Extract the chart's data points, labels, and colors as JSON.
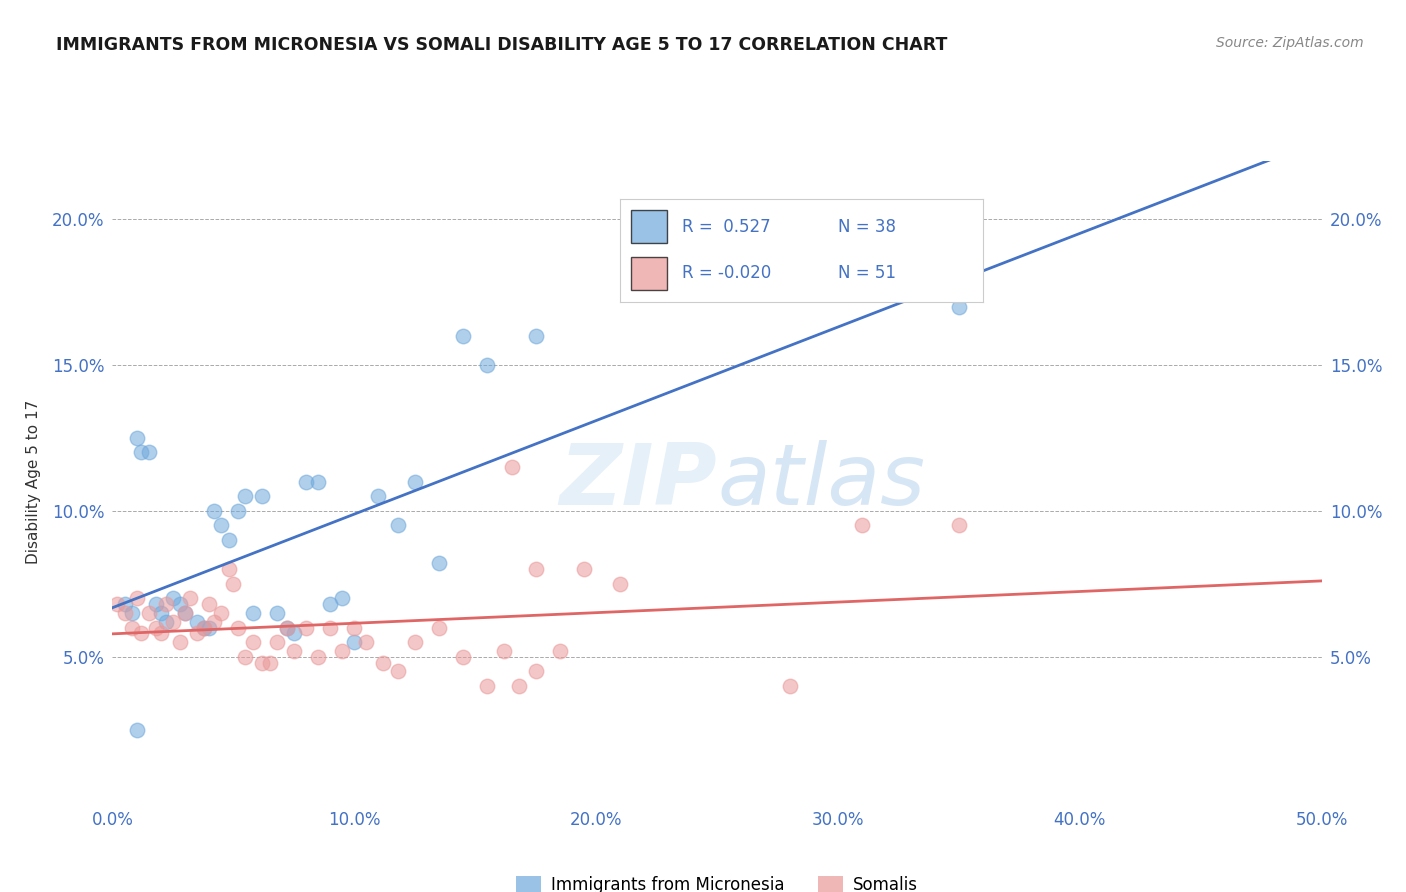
{
  "title": "IMMIGRANTS FROM MICRONESIA VS SOMALI DISABILITY AGE 5 TO 17 CORRELATION CHART",
  "source": "Source: ZipAtlas.com",
  "ylabel": "Disability Age 5 to 17",
  "xlim": [
    0,
    0.5
  ],
  "ylim": [
    0,
    0.22
  ],
  "xticks": [
    0.0,
    0.1,
    0.2,
    0.3,
    0.4,
    0.5
  ],
  "yticks": [
    0.05,
    0.1,
    0.15,
    0.2
  ],
  "ytick_labels": [
    "5.0%",
    "10.0%",
    "15.0%",
    "20.0%"
  ],
  "xtick_labels": [
    "0.0%",
    "10.0%",
    "20.0%",
    "30.0%",
    "40.0%",
    "50.0%"
  ],
  "blue_R": 0.527,
  "blue_N": 38,
  "pink_R": -0.02,
  "pink_N": 51,
  "blue_color": "#6fa8dc",
  "pink_color": "#ea9999",
  "blue_line_color": "#4472c4",
  "pink_line_color": "#e06666",
  "legend_label_blue": "Immigrants from Micronesia",
  "legend_label_pink": "Somalis",
  "blue_scatter_x": [
    0.005,
    0.008,
    0.01,
    0.012,
    0.015,
    0.018,
    0.02,
    0.022,
    0.025,
    0.028,
    0.03,
    0.035,
    0.038,
    0.04,
    0.042,
    0.045,
    0.048,
    0.052,
    0.055,
    0.058,
    0.062,
    0.068,
    0.072,
    0.075,
    0.08,
    0.085,
    0.09,
    0.095,
    0.1,
    0.11,
    0.118,
    0.125,
    0.135,
    0.145,
    0.155,
    0.175,
    0.35,
    0.01
  ],
  "blue_scatter_y": [
    0.068,
    0.065,
    0.125,
    0.12,
    0.12,
    0.068,
    0.065,
    0.062,
    0.07,
    0.068,
    0.065,
    0.062,
    0.06,
    0.06,
    0.1,
    0.095,
    0.09,
    0.1,
    0.105,
    0.065,
    0.105,
    0.065,
    0.06,
    0.058,
    0.11,
    0.11,
    0.068,
    0.07,
    0.055,
    0.105,
    0.095,
    0.11,
    0.082,
    0.16,
    0.15,
    0.16,
    0.17,
    0.025
  ],
  "pink_scatter_x": [
    0.002,
    0.005,
    0.008,
    0.01,
    0.012,
    0.015,
    0.018,
    0.02,
    0.022,
    0.025,
    0.028,
    0.03,
    0.032,
    0.035,
    0.038,
    0.04,
    0.042,
    0.045,
    0.048,
    0.05,
    0.052,
    0.055,
    0.058,
    0.062,
    0.065,
    0.068,
    0.072,
    0.075,
    0.08,
    0.085,
    0.09,
    0.095,
    0.1,
    0.105,
    0.112,
    0.118,
    0.125,
    0.135,
    0.145,
    0.155,
    0.162,
    0.168,
    0.175,
    0.185,
    0.195,
    0.21,
    0.175,
    0.28,
    0.31,
    0.35,
    0.165
  ],
  "pink_scatter_y": [
    0.068,
    0.065,
    0.06,
    0.07,
    0.058,
    0.065,
    0.06,
    0.058,
    0.068,
    0.062,
    0.055,
    0.065,
    0.07,
    0.058,
    0.06,
    0.068,
    0.062,
    0.065,
    0.08,
    0.075,
    0.06,
    0.05,
    0.055,
    0.048,
    0.048,
    0.055,
    0.06,
    0.052,
    0.06,
    0.05,
    0.06,
    0.052,
    0.06,
    0.055,
    0.048,
    0.045,
    0.055,
    0.06,
    0.05,
    0.04,
    0.052,
    0.04,
    0.045,
    0.052,
    0.08,
    0.075,
    0.08,
    0.04,
    0.095,
    0.095,
    0.115
  ]
}
